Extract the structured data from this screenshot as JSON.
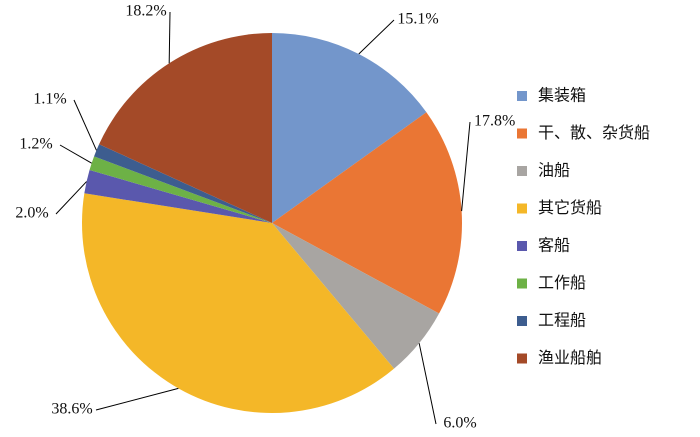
{
  "chart_data": {
    "type": "pie",
    "categories": [
      "集装箱",
      "干、散、杂货船",
      "油船",
      "其它货船",
      "客船",
      "工作船",
      "工程船",
      "渔业船舶"
    ],
    "values": [
      15.1,
      17.8,
      6.0,
      38.6,
      2.0,
      1.2,
      1.1,
      18.2
    ],
    "value_labels": [
      "15.1%",
      "17.8%",
      "6.0%",
      "38.6%",
      "2.0%",
      "1.2%",
      "1.1%",
      "18.2%"
    ],
    "colors": [
      "#7396cb",
      "#ea7634",
      "#a8a5a2",
      "#f4b728",
      "#5a58ad",
      "#6db146",
      "#3d5d8f",
      "#a44a28"
    ],
    "legend": "right"
  }
}
